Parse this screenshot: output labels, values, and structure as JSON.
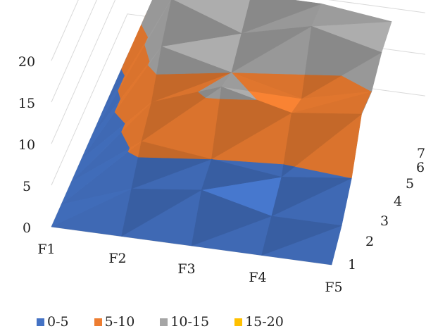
{
  "chart_data": {
    "type": "surface",
    "title": "",
    "x_categories": [
      "F1",
      "F2",
      "F3",
      "F4",
      "F5"
    ],
    "depth_categories": [
      "1",
      "2",
      "3",
      "4",
      "5",
      "6",
      "7"
    ],
    "z_ticks": [
      "0",
      "5",
      "10",
      "15",
      "20"
    ],
    "zlim": [
      0,
      20
    ],
    "grid": true,
    "legend_position": "bottom",
    "bands": [
      {
        "name": "0-5",
        "color": "#4472C4"
      },
      {
        "name": "5-10",
        "color": "#ED7D31"
      },
      {
        "name": "10-15",
        "color": "#A5A5A5"
      },
      {
        "name": "15-20",
        "color": "#FFC000"
      }
    ],
    "values_by_depth_row": [
      [
        0,
        0,
        0,
        0,
        0
      ],
      [
        0,
        3,
        4,
        2,
        2
      ],
      [
        0,
        6,
        5,
        4,
        5
      ],
      [
        0,
        8,
        11,
        9,
        10
      ],
      [
        0,
        12,
        10,
        8,
        10
      ],
      [
        0,
        15,
        12,
        14,
        12
      ],
      [
        0,
        20,
        14,
        14,
        13
      ]
    ]
  }
}
